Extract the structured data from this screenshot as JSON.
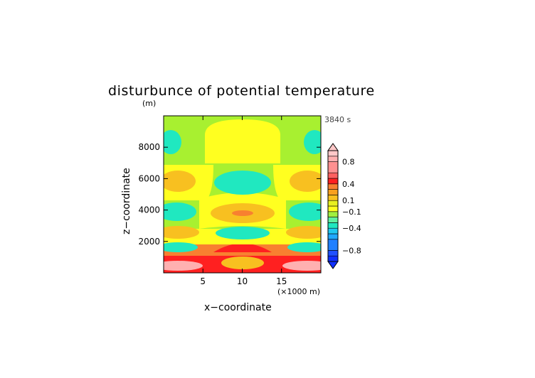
{
  "chart_data": {
    "type": "heatmap",
    "title": "disturbunce of potential temperature",
    "ylabel_unit": "(m)",
    "time_label": "3840 s",
    "xlabel": "x−coordinate",
    "ylabel": "z−coordinate",
    "x_unit_label": "(×1000 m)",
    "xlim": [
      0,
      20
    ],
    "ylim": [
      0,
      10000
    ],
    "x_ticks": [
      5,
      10,
      15
    ],
    "y_ticks": [
      2000,
      4000,
      6000,
      8000
    ],
    "colorbar": {
      "levels": [
        -1.0,
        -0.9,
        -0.8,
        -0.6,
        -0.5,
        -0.4,
        -0.3,
        -0.2,
        -0.1,
        0.0,
        0.1,
        0.2,
        0.3,
        0.4,
        0.5,
        0.6,
        0.8,
        0.9,
        1.0
      ],
      "colors": [
        "#1030ff",
        "#2050ff",
        "#2080ff",
        "#20a8ff",
        "#20c8f0",
        "#20e8c0",
        "#60f0a0",
        "#a0f040",
        "#ffff20",
        "#e8f020",
        "#f8c020",
        "#f8a020",
        "#f88030",
        "#ff2020",
        "#ff6060",
        "#ff9090",
        "#ffb0b0",
        "#ffc8c8"
      ],
      "tick_labels": [
        "−0.8",
        "−0.4",
        "−0.1",
        "0.1",
        "0.4",
        "0.8"
      ],
      "tick_values": [
        -0.8,
        -0.4,
        -0.1,
        0.1,
        0.4,
        0.8
      ]
    },
    "grid": false
  }
}
